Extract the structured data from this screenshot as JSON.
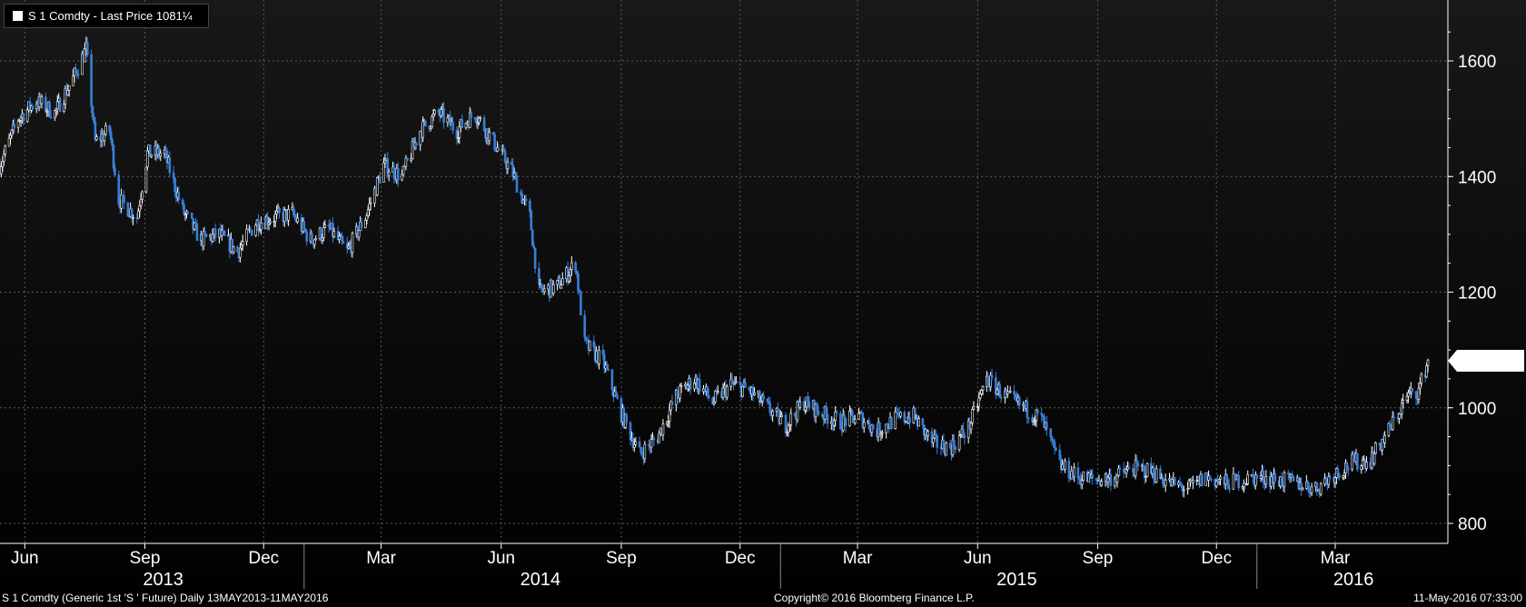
{
  "legend": {
    "label": "S 1 Comdty - Last Price 1081¼"
  },
  "footer": {
    "left": "S 1 Comdty (Generic 1st 'S ' Future)  Daily 13MAY2013-11MAY2016",
    "center": "Copyright© 2016 Bloomberg Finance L.P.",
    "right": "11-May-2016 07:33:00"
  },
  "colors": {
    "up": "#ffffff",
    "down": "#3a7fd5",
    "grid": "#5a5a5a",
    "background": "#000000"
  },
  "chart_data": {
    "type": "candlestick",
    "last_price": 1081.25,
    "last_price_label": "1081¼",
    "x_range": [
      "2013-05-13",
      "2016-05-11"
    ],
    "ylim": [
      780,
      1700
    ],
    "y_ticks": [
      800,
      1000,
      1200,
      1400,
      1600
    ],
    "y_tick_labels": [
      "800",
      "1000",
      "1200",
      "1400",
      "1600"
    ],
    "month_ticks": [
      {
        "date": "2013-06-01",
        "label": "Jun"
      },
      {
        "date": "2013-09-01",
        "label": "Sep"
      },
      {
        "date": "2013-12-01",
        "label": "Dec"
      },
      {
        "date": "2014-03-01",
        "label": "Mar"
      },
      {
        "date": "2014-06-01",
        "label": "Jun"
      },
      {
        "date": "2014-09-01",
        "label": "Sep"
      },
      {
        "date": "2014-12-01",
        "label": "Dec"
      },
      {
        "date": "2015-03-01",
        "label": "Mar"
      },
      {
        "date": "2015-06-01",
        "label": "Jun"
      },
      {
        "date": "2015-09-01",
        "label": "Sep"
      },
      {
        "date": "2015-12-01",
        "label": "Dec"
      },
      {
        "date": "2016-03-01",
        "label": "Mar"
      }
    ],
    "year_labels": [
      {
        "date": "2013-09-15",
        "label": "2013"
      },
      {
        "date": "2014-07-01",
        "label": "2014"
      },
      {
        "date": "2015-07-01",
        "label": "2015"
      },
      {
        "date": "2016-03-15",
        "label": "2016"
      }
    ],
    "year_boundaries": [
      "2014-01-01",
      "2015-01-01",
      "2016-01-01"
    ],
    "grid": true,
    "legend_position": "top-left",
    "price_series": [
      [
        "2013-05-13",
        1420
      ],
      [
        "2013-05-27",
        1500
      ],
      [
        "2013-06-10",
        1530
      ],
      [
        "2013-06-24",
        1510
      ],
      [
        "2013-07-08",
        1570
      ],
      [
        "2013-07-18",
        1620
      ],
      [
        "2013-07-25",
        1460
      ],
      [
        "2013-08-05",
        1480
      ],
      [
        "2013-08-12",
        1360
      ],
      [
        "2013-08-26",
        1330
      ],
      [
        "2013-09-03",
        1440
      ],
      [
        "2013-09-16",
        1440
      ],
      [
        "2013-09-30",
        1340
      ],
      [
        "2013-10-14",
        1290
      ],
      [
        "2013-10-28",
        1300
      ],
      [
        "2013-11-11",
        1270
      ],
      [
        "2013-11-25",
        1320
      ],
      [
        "2013-12-09",
        1330
      ],
      [
        "2013-12-23",
        1335
      ],
      [
        "2014-01-06",
        1290
      ],
      [
        "2014-01-20",
        1310
      ],
      [
        "2014-02-03",
        1270
      ],
      [
        "2014-02-17",
        1330
      ],
      [
        "2014-03-03",
        1420
      ],
      [
        "2014-03-17",
        1400
      ],
      [
        "2014-03-31",
        1480
      ],
      [
        "2014-04-14",
        1510
      ],
      [
        "2014-04-28",
        1480
      ],
      [
        "2014-05-12",
        1510
      ],
      [
        "2014-05-26",
        1460
      ],
      [
        "2014-06-09",
        1410
      ],
      [
        "2014-06-23",
        1330
      ],
      [
        "2014-06-30",
        1200
      ],
      [
        "2014-07-14",
        1210
      ],
      [
        "2014-07-28",
        1250
      ],
      [
        "2014-08-04",
        1110
      ],
      [
        "2014-08-18",
        1080
      ],
      [
        "2014-09-01",
        990
      ],
      [
        "2014-09-15",
        920
      ],
      [
        "2014-09-29",
        950
      ],
      [
        "2014-10-13",
        1020
      ],
      [
        "2014-10-27",
        1050
      ],
      [
        "2014-11-10",
        1010
      ],
      [
        "2014-11-24",
        1040
      ],
      [
        "2014-12-08",
        1030
      ],
      [
        "2014-12-22",
        1000
      ],
      [
        "2015-01-05",
        970
      ],
      [
        "2015-01-19",
        1010
      ],
      [
        "2015-02-02",
        990
      ],
      [
        "2015-02-16",
        975
      ],
      [
        "2015-03-02",
        985
      ],
      [
        "2015-03-16",
        960
      ],
      [
        "2015-03-30",
        980
      ],
      [
        "2015-04-13",
        985
      ],
      [
        "2015-04-27",
        940
      ],
      [
        "2015-05-11",
        930
      ],
      [
        "2015-05-25",
        965
      ],
      [
        "2015-06-08",
        1050
      ],
      [
        "2015-06-22",
        1020
      ],
      [
        "2015-07-06",
        1000
      ],
      [
        "2015-07-20",
        980
      ],
      [
        "2015-08-03",
        900
      ],
      [
        "2015-08-17",
        880
      ],
      [
        "2015-08-31",
        875
      ],
      [
        "2015-09-14",
        880
      ],
      [
        "2015-09-28",
        895
      ],
      [
        "2015-10-12",
        890
      ],
      [
        "2015-10-26",
        870
      ],
      [
        "2015-11-09",
        860
      ],
      [
        "2015-11-23",
        880
      ],
      [
        "2015-12-07",
        870
      ],
      [
        "2015-12-21",
        875
      ],
      [
        "2016-01-04",
        880
      ],
      [
        "2016-01-18",
        875
      ],
      [
        "2016-02-01",
        870
      ],
      [
        "2016-02-15",
        860
      ],
      [
        "2016-02-29",
        885
      ],
      [
        "2016-03-14",
        905
      ],
      [
        "2016-03-28",
        910
      ],
      [
        "2016-04-11",
        960
      ],
      [
        "2016-04-25",
        1020
      ],
      [
        "2016-05-04",
        1030
      ],
      [
        "2016-05-11",
        1081.25
      ]
    ]
  }
}
